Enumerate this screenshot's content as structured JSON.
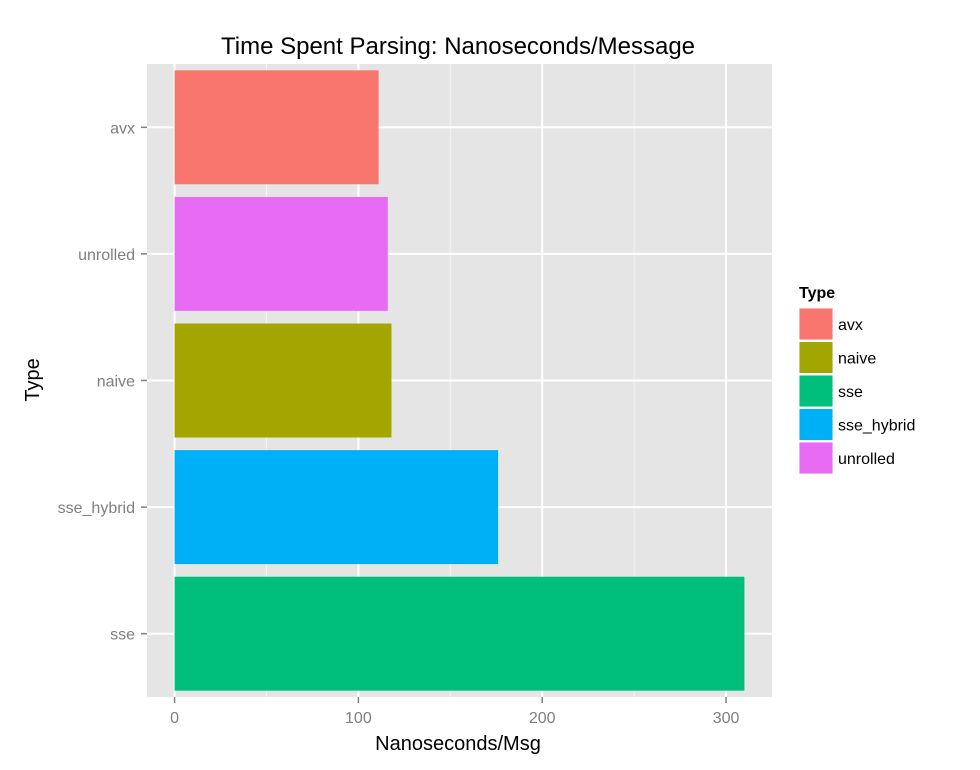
{
  "chart_data": {
    "type": "bar",
    "orientation": "horizontal",
    "title": "Time Spent Parsing: Nanoseconds/Message",
    "xlabel": "Nanoseconds/Msg",
    "ylabel": "Type",
    "xlim": [
      -15,
      325
    ],
    "x_ticks": [
      0,
      100,
      200,
      300
    ],
    "x_minor_ticks": [
      50,
      150,
      250
    ],
    "categories": [
      "avx",
      "unrolled",
      "naive",
      "sse_hybrid",
      "sse"
    ],
    "values": [
      111,
      116,
      118,
      176,
      310
    ],
    "bar_colors": [
      "#F8766D",
      "#E76BF3",
      "#A3A500",
      "#00B0F6",
      "#00BF7D"
    ],
    "legend": {
      "title": "Type",
      "position": "right",
      "items": [
        {
          "label": "avx",
          "color": "#F8766D"
        },
        {
          "label": "naive",
          "color": "#A3A500"
        },
        {
          "label": "sse",
          "color": "#00BF7D"
        },
        {
          "label": "sse_hybrid",
          "color": "#00B0F6"
        },
        {
          "label": "unrolled",
          "color": "#E76BF3"
        }
      ]
    },
    "grid": true,
    "panel_background": "#E5E5E5",
    "grid_color": "#FFFFFF"
  }
}
